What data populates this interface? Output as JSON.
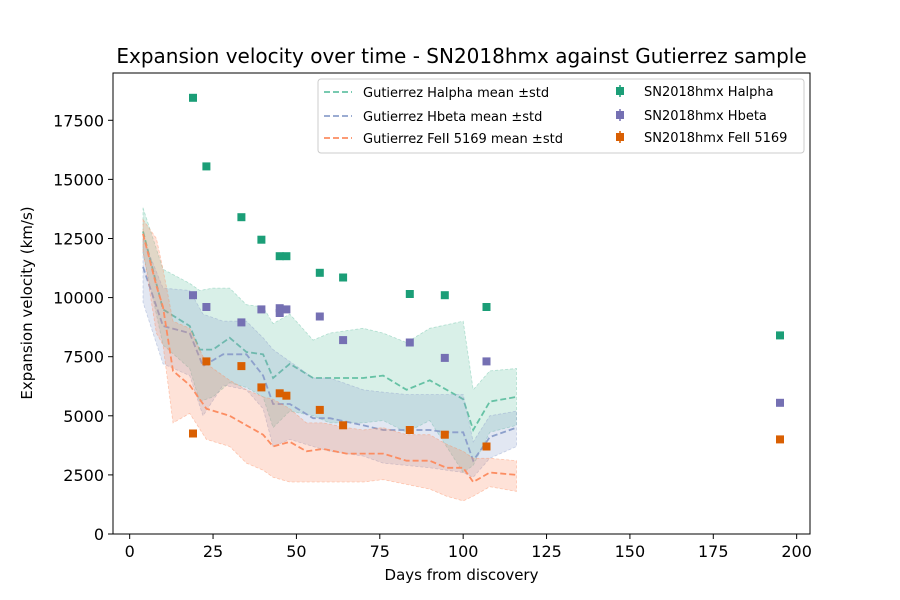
{
  "chart_data": {
    "type": "scatter",
    "title": "Expansion velocity over time - SN2018hmx against Gutierrez sample",
    "xlabel": "Days from discovery",
    "ylabel": "Expansion velocity (km/s)",
    "xlim": [
      -5,
      204
    ],
    "ylim": [
      0,
      19500
    ],
    "xticks": [
      0,
      25,
      50,
      75,
      100,
      125,
      150,
      175,
      200
    ],
    "yticks": [
      0,
      2500,
      5000,
      7500,
      10000,
      12500,
      15000,
      17500
    ],
    "grid": false,
    "legend_placement": "top-right",
    "colors": {
      "halpha": "#1b9e77",
      "hbeta": "#7570b3",
      "feii": "#d95f02",
      "halpha_mean": "#66c2a5",
      "hbeta_mean": "#8da0cb",
      "feii_mean": "#fc8d62"
    },
    "bands": [
      {
        "name": "Gutierrez Halpha mean ±std",
        "color_key": "halpha_mean",
        "x": [
          4,
          10,
          18,
          21,
          25,
          30,
          35,
          40,
          43,
          48,
          55,
          60,
          70,
          76,
          83,
          90,
          100,
          103,
          108,
          116
        ],
        "mean": [
          12800,
          9500,
          8800,
          7800,
          7800,
          8300,
          7700,
          7600,
          6600,
          7200,
          6600,
          6600,
          6600,
          6700,
          6100,
          6500,
          5700,
          4400,
          5600,
          5800
        ],
        "upper": [
          13800,
          11200,
          10600,
          10300,
          10400,
          10400,
          9700,
          9600,
          8900,
          9300,
          8200,
          8500,
          8700,
          8500,
          8100,
          8700,
          9000,
          6100,
          6900,
          7000
        ],
        "lower": [
          11900,
          8000,
          7000,
          5600,
          5800,
          6400,
          6200,
          5800,
          4500,
          5200,
          5000,
          4700,
          4700,
          4800,
          4300,
          4800,
          2600,
          2900,
          4300,
          4600
        ]
      },
      {
        "name": "Gutierrez Hbeta mean ±std",
        "color_key": "hbeta_mean",
        "x": [
          4,
          10,
          18,
          22,
          28,
          35,
          40,
          43,
          48,
          55,
          60,
          70,
          76,
          83,
          90,
          95,
          100,
          103,
          108,
          116
        ],
        "mean": [
          11300,
          8800,
          8500,
          7100,
          7600,
          7600,
          6700,
          5500,
          5500,
          4900,
          4900,
          4600,
          4400,
          4400,
          4400,
          4300,
          4300,
          3100,
          4100,
          4500
        ],
        "upper": [
          12500,
          10400,
          10300,
          9300,
          9000,
          9000,
          8300,
          7800,
          7300,
          6600,
          6600,
          6100,
          6000,
          5900,
          5900,
          5900,
          5900,
          3900,
          5000,
          5200
        ],
        "lower": [
          9800,
          7200,
          6700,
          5000,
          6300,
          6100,
          5300,
          3700,
          4000,
          3700,
          3500,
          3300,
          3000,
          2900,
          2800,
          2700,
          2600,
          2400,
          3200,
          3700
        ]
      },
      {
        "name": "Gutierrez FeII 5169 mean ±std",
        "color_key": "feii_mean",
        "x": [
          4,
          8,
          10,
          13,
          18,
          23,
          30,
          35,
          40,
          43,
          48,
          53,
          58,
          65,
          70,
          76,
          83,
          90,
          95,
          100,
          103,
          108,
          116
        ],
        "mean": [
          12700,
          10500,
          9600,
          6900,
          6300,
          5300,
          5000,
          4600,
          4200,
          3700,
          3900,
          3500,
          3600,
          3400,
          3400,
          3400,
          3100,
          3100,
          2800,
          2800,
          2200,
          2600,
          2500
        ],
        "upper": [
          13300,
          12500,
          11200,
          9000,
          8700,
          7200,
          6500,
          6100,
          5800,
          5700,
          5300,
          4700,
          4700,
          4500,
          4400,
          4500,
          4200,
          4200,
          3800,
          3500,
          3200,
          3200,
          3100
        ],
        "lower": [
          12000,
          8500,
          8000,
          4700,
          5100,
          4000,
          3700,
          3000,
          2700,
          2400,
          2200,
          2200,
          2200,
          2200,
          2200,
          2300,
          2100,
          1900,
          1600,
          1400,
          1600,
          2000,
          1800
        ]
      }
    ],
    "series": [
      {
        "name": "SN2018hmx Halpha",
        "color_key": "halpha",
        "x": [
          19,
          23,
          33.5,
          39.5,
          45,
          47,
          57,
          64,
          84,
          94.5,
          107,
          195
        ],
        "y": [
          18450,
          15550,
          13400,
          12450,
          11750,
          11750,
          11050,
          10850,
          10150,
          10100,
          9600,
          8400
        ]
      },
      {
        "name": "SN2018hmx Hbeta",
        "color_key": "hbeta",
        "x": [
          19,
          23,
          33.5,
          39.5,
          45,
          45,
          47,
          57,
          64,
          84,
          94.5,
          107,
          195
        ],
        "y": [
          10100,
          9600,
          8950,
          9500,
          9550,
          9350,
          9500,
          9200,
          8200,
          8100,
          7450,
          7300,
          5550
        ]
      },
      {
        "name": "SN2018hmx FeII 5169",
        "color_key": "feii",
        "x": [
          19,
          23,
          33.5,
          39.5,
          45,
          47,
          57,
          64,
          84,
          94.5,
          107,
          195
        ],
        "y": [
          4250,
          7300,
          7100,
          6200,
          5950,
          5850,
          5250,
          4600,
          4400,
          4200,
          3700,
          4000
        ]
      }
    ]
  }
}
